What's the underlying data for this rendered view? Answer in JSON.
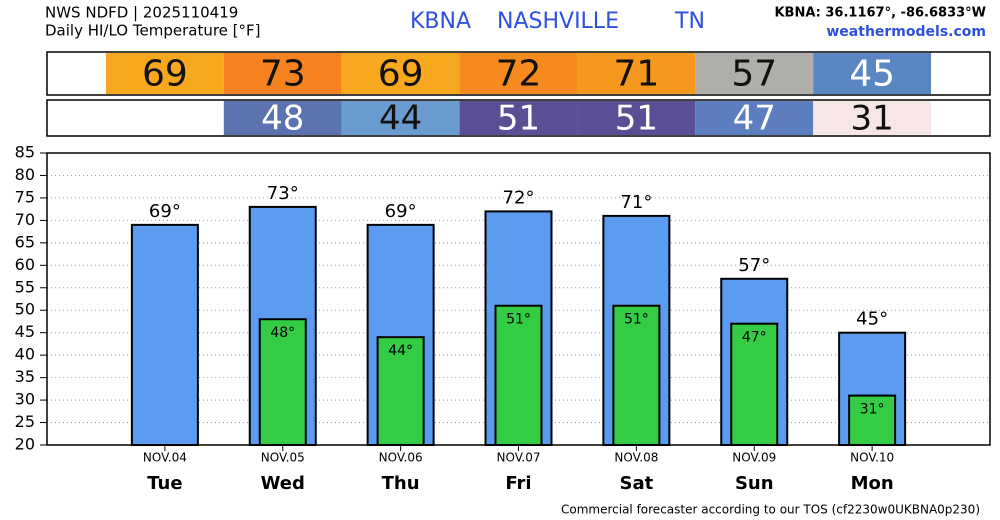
{
  "header": {
    "source": "NWS NDFD | 2025110419",
    "station": "KBNA",
    "city": "NASHVILLE",
    "state": "TN",
    "coords": "KBNA: 36.1167°, -86.6833°W",
    "site": "weathermodels.com"
  },
  "footer": "Commercial forecaster according to our TOS (cf2230w0UKBNA0p230)",
  "chart_data": {
    "type": "bar",
    "title": "Daily HI/LO Temperature [°F]",
    "categories": [
      "NOV.04",
      "NOV.05",
      "NOV.06",
      "NOV.07",
      "NOV.08",
      "NOV.09",
      "NOV.10"
    ],
    "weekdays": [
      "Tue",
      "Wed",
      "Thu",
      "Fri",
      "Sat",
      "Sun",
      "Mon"
    ],
    "series": [
      {
        "color": "#5b9cf0",
        "values": [
          69,
          73,
          69,
          72,
          71,
          57,
          45
        ],
        "value_labels": [
          "69°",
          "73°",
          "69°",
          "72°",
          "71°",
          "57°",
          "45°"
        ],
        "cell_colors": [
          "#f7a81e",
          "#f5821f",
          "#f7a81e",
          "#f68a1f",
          "#f7981e",
          "#b0aeaa",
          "#5b86c4"
        ]
      },
      {
        "color": "#33cc44",
        "values": [
          null,
          48,
          44,
          51,
          51,
          47,
          31
        ],
        "value_labels": [
          null,
          "48°",
          "44°",
          "51°",
          "51°",
          "47°",
          "31°"
        ],
        "cell_colors": [
          null,
          "#5a72b0",
          "#6a9bd0",
          "#5a4f95",
          "#5a4f95",
          "#5c7dc0",
          "#f7e6e6"
        ]
      }
    ],
    "ylim": [
      20,
      85
    ],
    "yticks": [
      20,
      25,
      30,
      35,
      40,
      45,
      50,
      55,
      60,
      65,
      70,
      75,
      80,
      85
    ],
    "grid": true
  }
}
